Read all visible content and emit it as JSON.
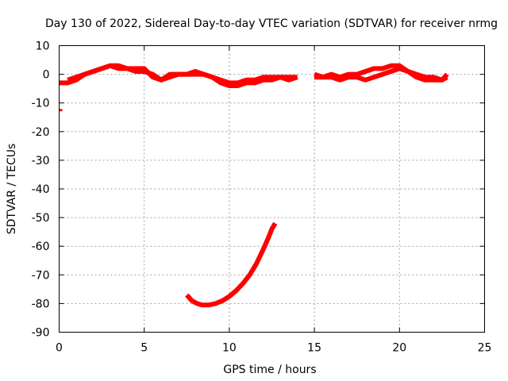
{
  "chart_data": {
    "type": "scatter",
    "title": "Day 130 of 2022, Sidereal Day-to-day VTEC variation (SDTVAR) for receiver nrmg",
    "xlabel": "GPS time / hours",
    "ylabel": "SDTVAR / TECUs",
    "xlim": [
      0,
      25
    ],
    "ylim": [
      -90,
      10
    ],
    "xticks": [
      0,
      5,
      10,
      15,
      20,
      25
    ],
    "yticks": [
      10,
      0,
      -10,
      -20,
      -30,
      -40,
      -50,
      -60,
      -70,
      -80,
      -90
    ],
    "grid": true,
    "legend": "none",
    "color": "#ff0000",
    "series": [
      {
        "name": "upper-trace-a",
        "x": [
          0.0,
          0.5,
          1.0,
          1.5,
          2.0,
          2.5,
          3.0,
          3.5,
          4.0,
          4.5,
          5.0,
          5.5,
          6.0,
          6.5,
          7.0,
          7.5,
          8.0,
          8.5,
          9.0,
          9.5,
          10.0,
          10.5,
          11.0,
          11.5,
          12.0,
          12.5,
          13.0,
          13.5,
          14.0
        ],
        "y": [
          -3,
          -3,
          -2,
          0,
          1,
          2,
          3,
          3,
          2,
          2,
          2,
          -1,
          -2,
          0,
          0,
          0,
          0,
          0,
          -1,
          -2,
          -3,
          -3,
          -2,
          -2,
          -1,
          -1,
          -1,
          -1,
          -1
        ]
      },
      {
        "name": "upper-trace-b",
        "x": [
          0.5,
          1.0,
          1.5,
          2.0,
          2.5,
          3.0,
          3.5,
          4.0,
          4.5,
          5.0,
          5.5,
          6.0,
          6.5,
          7.0,
          7.5,
          8.0,
          8.5,
          9.0,
          9.5,
          10.0,
          10.5,
          11.0,
          11.5,
          12.0,
          12.5,
          13.0,
          13.5,
          14.0
        ],
        "y": [
          -2,
          -1,
          0,
          1,
          2,
          3,
          2,
          2,
          1,
          1,
          0,
          -2,
          -1,
          0,
          0,
          1,
          0,
          -1,
          -3,
          -4,
          -4,
          -3,
          -3,
          -2,
          -2,
          -1,
          -2,
          -1
        ]
      },
      {
        "name": "upper-trace-c",
        "x": [
          15.0,
          15.5,
          16.0,
          16.5,
          17.0,
          17.5,
          18.0,
          18.5,
          19.0,
          19.5,
          20.0,
          20.5,
          21.0,
          21.5,
          22.0,
          22.5,
          22.8
        ],
        "y": [
          0,
          -1,
          0,
          -1,
          0,
          0,
          1,
          2,
          2,
          3,
          3,
          1,
          0,
          -1,
          -1,
          -2,
          -1
        ]
      },
      {
        "name": "upper-trace-d",
        "x": [
          15.0,
          15.5,
          16.0,
          16.5,
          17.0,
          17.5,
          18.0,
          18.5,
          19.0,
          19.5,
          20.0,
          20.5,
          21.0,
          21.5,
          22.0,
          22.5,
          22.8
        ],
        "y": [
          -1,
          -1,
          -1,
          -2,
          -1,
          -1,
          -2,
          -1,
          0,
          1,
          2,
          1,
          -1,
          -2,
          -2,
          -2,
          0
        ]
      },
      {
        "name": "lower-arc",
        "x": [
          7.5,
          7.8,
          8.1,
          8.4,
          8.8,
          9.2,
          9.6,
          10.0,
          10.4,
          10.8,
          11.2,
          11.6,
          12.0,
          12.3,
          12.5,
          12.7
        ],
        "y": [
          -77,
          -79,
          -80,
          -80.5,
          -80.5,
          -80,
          -79,
          -77.5,
          -75.5,
          -73,
          -70,
          -66,
          -61,
          -57,
          -54,
          -52
        ]
      },
      {
        "name": "isolated-point",
        "x": [
          0.0
        ],
        "y": [
          -12.5
        ]
      }
    ]
  }
}
